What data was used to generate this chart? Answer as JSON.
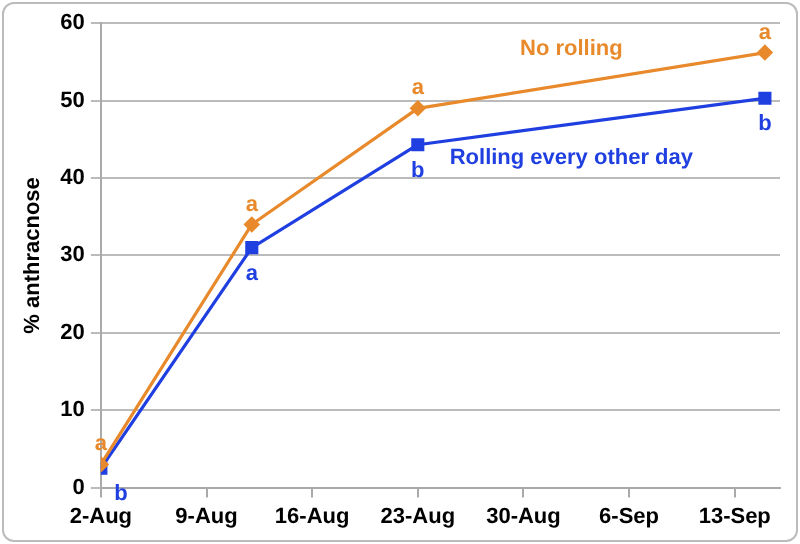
{
  "chart_data": {
    "type": "line",
    "ylabel": "% anthracnose",
    "x": [
      "--08-02",
      "--08-12",
      "--08-23",
      "--09-15"
    ],
    "xlim": [
      "--08-02",
      "--09-16"
    ],
    "xticks": [
      {
        "value": "--08-02",
        "label": "2-Aug"
      },
      {
        "value": "--08-09",
        "label": "9-Aug"
      },
      {
        "value": "--08-16",
        "label": "16-Aug"
      },
      {
        "value": "--08-23",
        "label": "23-Aug"
      },
      {
        "value": "--08-30",
        "label": "30-Aug"
      },
      {
        "value": "--09-06",
        "label": "6-Sep"
      },
      {
        "value": "--09-13",
        "label": "13-Sep"
      }
    ],
    "ylim": [
      0,
      60
    ],
    "yticks": [
      0,
      10,
      20,
      30,
      40,
      50,
      60
    ],
    "grid": "y",
    "legend": false,
    "series": [
      {
        "name": "No rolling",
        "color": "#e8892b",
        "marker": "diamond",
        "values": [
          3,
          34,
          49,
          56.2
        ]
      },
      {
        "name": "Rolling every other day",
        "color": "#1f3fe0",
        "marker": "square",
        "values": [
          2.5,
          31,
          44.3,
          50.3
        ]
      }
    ],
    "annotations": [
      {
        "text": "a",
        "x": "--08-02",
        "y": 3
      },
      {
        "text": "b",
        "x": "--08-02",
        "y": 2.5
      },
      {
        "text": "a",
        "x": "--08-12",
        "y": 34
      },
      {
        "text": "a",
        "x": "--08-12",
        "y": 31
      },
      {
        "text": "a",
        "x": "--08-23",
        "y": 49
      },
      {
        "text": "b",
        "x": "--08-23",
        "y": 44.3
      },
      {
        "text": "a",
        "x": "--09-15",
        "y": 56.2
      },
      {
        "text": "b",
        "x": "--09-15",
        "y": 50.3
      }
    ]
  }
}
